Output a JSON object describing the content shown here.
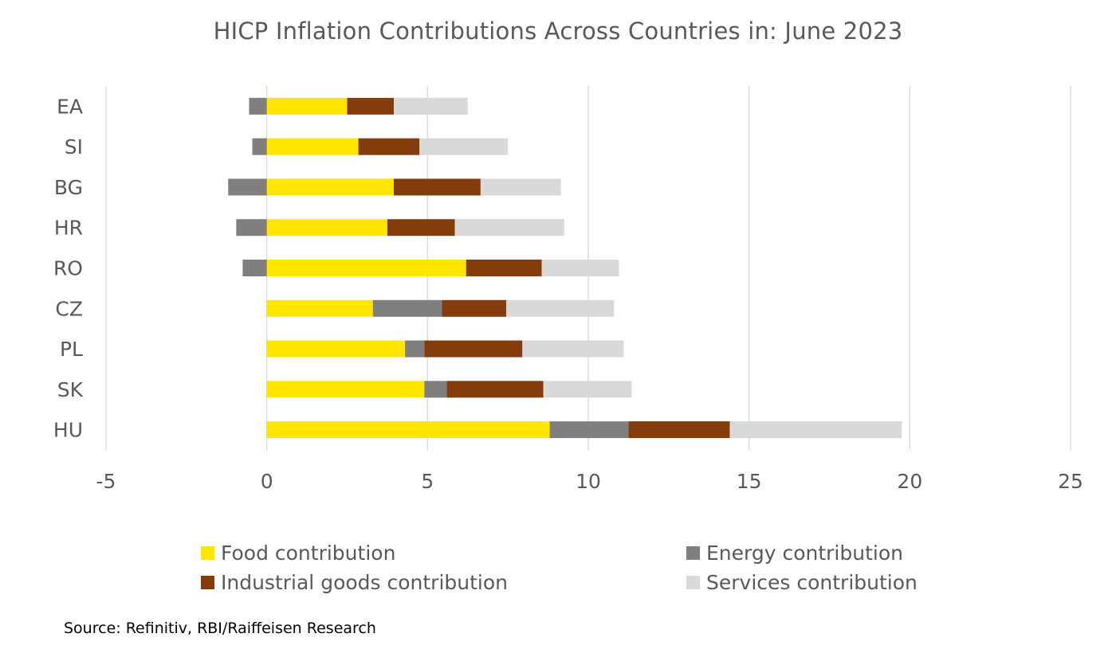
{
  "chart_data": {
    "type": "bar",
    "orientation": "horizontal",
    "stacked": true,
    "title": "HICP Inflation Contributions Across Countries in: June 2023",
    "categories": [
      "EA",
      "SI",
      "BG",
      "HR",
      "RO",
      "CZ",
      "PL",
      "SK",
      "HU"
    ],
    "series": [
      {
        "name": "Food contribution",
        "color": "#FFE600",
        "values": [
          2.5,
          2.85,
          3.95,
          3.75,
          6.2,
          3.3,
          4.3,
          4.9,
          8.8
        ]
      },
      {
        "name": "Energy contribution",
        "color": "#7F7F7F",
        "values": [
          -0.55,
          -0.45,
          -1.2,
          -0.95,
          -0.75,
          2.15,
          0.6,
          0.7,
          2.45
        ]
      },
      {
        "name": "Industrial goods contribution",
        "color": "#843C0C",
        "values": [
          1.45,
          1.9,
          2.7,
          2.1,
          2.35,
          2.0,
          3.05,
          3.0,
          3.15
        ]
      },
      {
        "name": "Services contribution",
        "color": "#D9D9D9",
        "values": [
          2.3,
          2.75,
          2.5,
          3.4,
          2.4,
          3.35,
          3.15,
          2.75,
          5.35
        ]
      }
    ],
    "xlabel": "",
    "ylabel": "",
    "xlim": [
      -5,
      25
    ],
    "xticks": [
      -5,
      0,
      5,
      10,
      15,
      20,
      25
    ],
    "grid": true,
    "legend_position": "bottom"
  },
  "legend": {
    "food": "Food contribution",
    "energy": "Energy contribution",
    "industrial": "Industrial goods contribution",
    "services": "Services contribution"
  },
  "source": "Source: Refinitiv, RBI/Raiffeisen Research"
}
